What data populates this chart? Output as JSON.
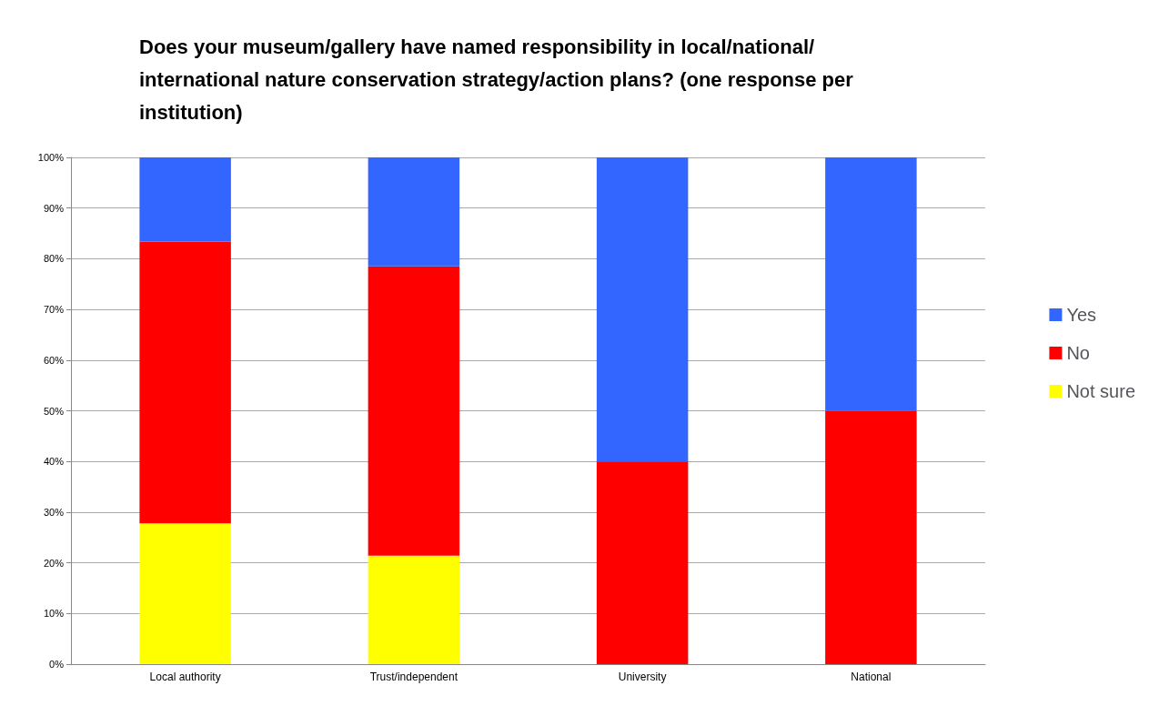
{
  "chart_data": {
    "type": "bar",
    "title": "Does your museum/gallery have named responsibility in local/national/\ninternational nature conservation strategy/action plans? (one response per\ninstitution)",
    "categories": [
      "Local authority",
      "Trust/independent",
      "University",
      "National"
    ],
    "stacked": true,
    "series": [
      {
        "name": "Not sure",
        "color": "#ffff00",
        "values": [
          27.8,
          21.4,
          0,
          0
        ]
      },
      {
        "name": "No",
        "color": "#ff0000",
        "values": [
          55.6,
          57.1,
          40,
          50
        ]
      },
      {
        "name": "Yes",
        "color": "#3366ff",
        "values": [
          16.6,
          21.5,
          60,
          50
        ]
      }
    ],
    "ylim": [
      0,
      100
    ],
    "yticks": [
      {
        "value": 0,
        "label": "0%"
      },
      {
        "value": 10,
        "label": "10%"
      },
      {
        "value": 20,
        "label": "20%"
      },
      {
        "value": 30,
        "label": "30%"
      },
      {
        "value": 40,
        "label": "40%"
      },
      {
        "value": 50,
        "label": "50%"
      },
      {
        "value": 60,
        "label": "60%"
      },
      {
        "value": 70,
        "label": "70%"
      },
      {
        "value": 80,
        "label": "80%"
      },
      {
        "value": 90,
        "label": "90%"
      },
      {
        "value": 100,
        "label": "100%"
      }
    ],
    "grid": "y",
    "legend": "right"
  }
}
